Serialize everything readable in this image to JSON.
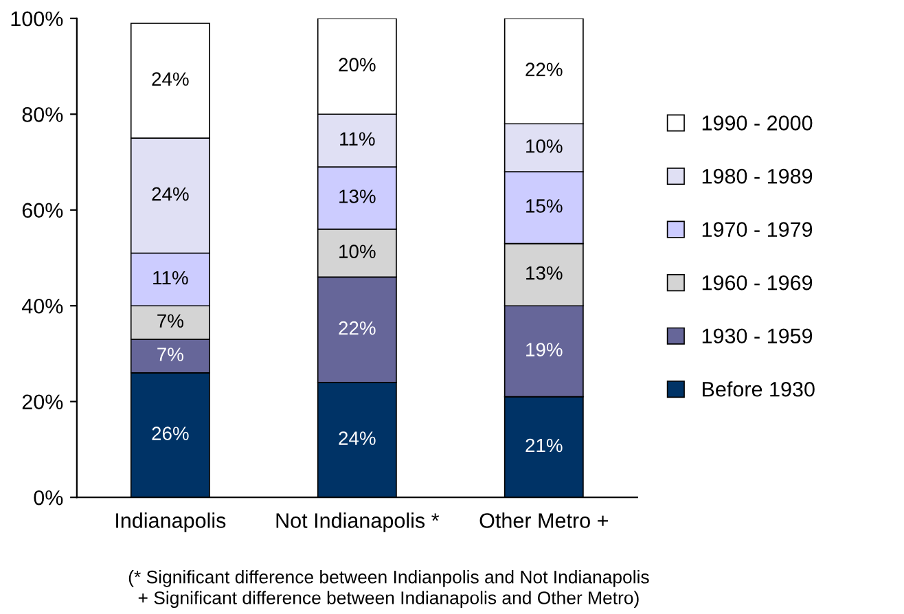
{
  "chart_data": {
    "type": "bar",
    "stacked": true,
    "categories": [
      "Indianapolis",
      "Not Indianapolis *",
      "Other Metro +"
    ],
    "series": [
      {
        "name": "Before 1930",
        "color": "#003366",
        "values": [
          26,
          24,
          21
        ],
        "value_labels": [
          "26%",
          "24%",
          "21%"
        ]
      },
      {
        "name": "1930 - 1959",
        "color": "#666699",
        "values": [
          7,
          22,
          19
        ],
        "value_labels": [
          "7%",
          "22%",
          "19%"
        ]
      },
      {
        "name": "1960 - 1969",
        "color": "#d4d4d4",
        "values": [
          7,
          10,
          13
        ],
        "value_labels": [
          "7%",
          "10%",
          "13%"
        ]
      },
      {
        "name": "1970 - 1979",
        "color": "#ccccff",
        "values": [
          11,
          13,
          15
        ],
        "value_labels": [
          "11%",
          "13%",
          "15%"
        ]
      },
      {
        "name": "1980 - 1989",
        "color": "#e0e0f4",
        "values": [
          24,
          11,
          10
        ],
        "value_labels": [
          "24%",
          "11%",
          "10%"
        ]
      },
      {
        "name": "1990 - 2000",
        "color": "#ffffff",
        "values": [
          24,
          20,
          22
        ],
        "value_labels": [
          "24%",
          "20%",
          "22%"
        ]
      }
    ],
    "ylim": [
      0,
      100
    ],
    "yticks": [
      {
        "value": 0,
        "label": "0%"
      },
      {
        "value": 20,
        "label": "20%"
      },
      {
        "value": 40,
        "label": "40%"
      },
      {
        "value": 60,
        "label": "60%"
      },
      {
        "value": 80,
        "label": "80%"
      },
      {
        "value": 100,
        "label": "100%"
      }
    ],
    "grid": false,
    "legend": "right",
    "annotations": [
      "(* Significant difference between Indianpolis and Not Indianapolis\n+ Significant difference between Indianapolis and Other Metro)"
    ]
  }
}
